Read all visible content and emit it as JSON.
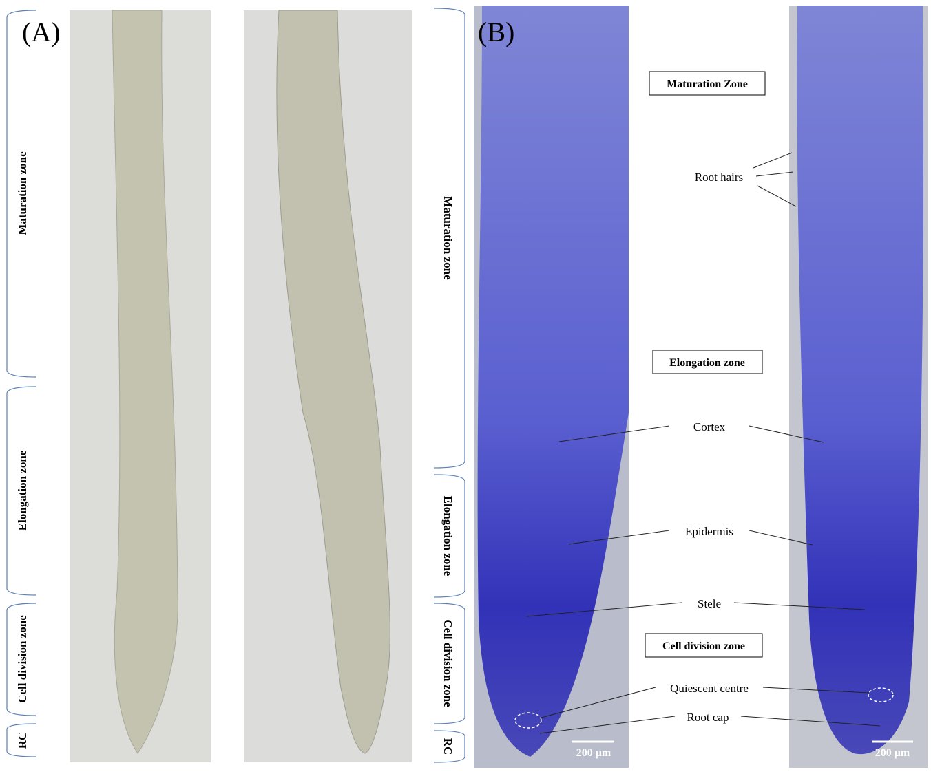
{
  "panels": [
    {
      "label": "(A)",
      "zones": [
        "Maturation zone",
        "Elongation zone",
        "Cell division zone",
        "RC"
      ]
    },
    {
      "label": "(B)",
      "zones": [
        "Maturation zone",
        "Elongation zone",
        "Cell division zone",
        "RC"
      ],
      "boxed_labels": [
        "Maturation Zone",
        "Elongation zone",
        "Cell division zone"
      ],
      "annotations": [
        "Root hairs",
        "Cortex",
        "Epidermis",
        "Stele",
        "Quiescent centre",
        "Root cap"
      ],
      "scale_bars": [
        "200 μm",
        "200 μm"
      ]
    }
  ]
}
